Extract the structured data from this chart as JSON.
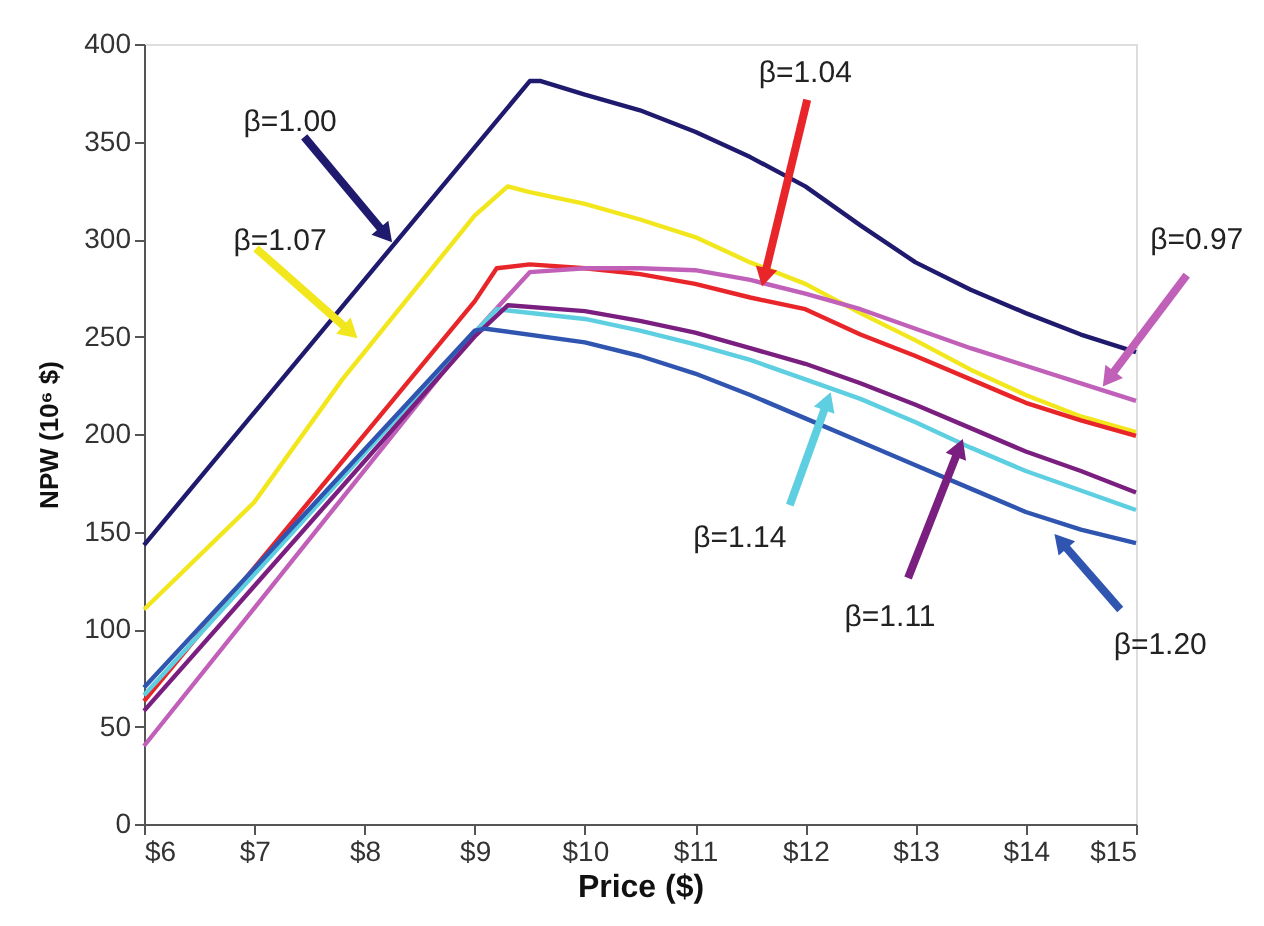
{
  "chart_data": {
    "type": "line",
    "xlabel": "Price ($)",
    "ylabel": "NPW (10⁶ $)",
    "xlim": [
      6,
      15
    ],
    "ylim": [
      0,
      400
    ],
    "xticks": [
      {
        "value": 6,
        "label": "$6"
      },
      {
        "value": 7,
        "label": "$7"
      },
      {
        "value": 8,
        "label": "$8"
      },
      {
        "value": 9,
        "label": "$9"
      },
      {
        "value": 10,
        "label": "$10"
      },
      {
        "value": 11,
        "label": "$11"
      },
      {
        "value": 12,
        "label": "$12"
      },
      {
        "value": 13,
        "label": "$13"
      },
      {
        "value": 14,
        "label": "$14"
      },
      {
        "value": 15,
        "label": "$15"
      }
    ],
    "yticks": [
      0,
      50,
      100,
      150,
      200,
      250,
      300,
      350,
      400
    ],
    "grid": false,
    "legend": false,
    "marker": "none",
    "line_style": "solid",
    "series": [
      {
        "color": "#1f1a6e",
        "x": [
          6,
          9,
          9.5,
          9.6,
          10,
          10.5,
          11,
          11.5,
          12,
          12.5,
          13,
          13.5,
          14,
          14.5,
          15
        ],
        "values": [
          143,
          347,
          381,
          381,
          374,
          366,
          355,
          342,
          327,
          307,
          288,
          274,
          262,
          251,
          242
        ]
      },
      {
        "color": "#f2e61c",
        "x": [
          6,
          7,
          7.8,
          9,
          9.3,
          9.5,
          10,
          10.5,
          11,
          11.5,
          12,
          12.5,
          13,
          13.5,
          14,
          14.5,
          15
        ],
        "values": [
          110,
          165,
          228,
          312,
          327,
          324,
          318,
          310,
          301,
          288,
          277,
          262,
          248,
          233,
          220,
          209,
          201
        ]
      },
      {
        "color": "#e8262a",
        "x": [
          6,
          9,
          9.2,
          9.5,
          10,
          10.5,
          11,
          11.5,
          12,
          12.5,
          13,
          13.5,
          14,
          14.5,
          15
        ],
        "values": [
          63,
          268,
          285,
          287,
          285,
          282,
          277,
          270,
          264,
          251,
          240,
          228,
          216,
          207,
          199
        ]
      },
      {
        "color": "#c060b8",
        "x": [
          6,
          9,
          9.5,
          10,
          10.5,
          11,
          11.5,
          12,
          12.5,
          13,
          13.5,
          14,
          14.5,
          15
        ],
        "values": [
          40,
          252,
          283,
          285,
          285,
          284,
          279,
          272,
          264,
          254,
          244,
          235,
          226,
          217
        ]
      },
      {
        "color": "#5ecfe0",
        "x": [
          6,
          9,
          9.2,
          10,
          10.5,
          11,
          11.5,
          12,
          12.5,
          13,
          13.5,
          14,
          14.5,
          15
        ],
        "values": [
          66,
          252,
          264,
          259,
          253,
          246,
          238,
          228,
          218,
          206,
          193,
          181,
          171,
          161
        ]
      },
      {
        "color": "#7a1f80",
        "x": [
          6,
          9,
          9.3,
          10,
          10.5,
          11,
          11.5,
          12,
          12.5,
          13,
          13.5,
          14,
          14.5,
          15
        ],
        "values": [
          58,
          250,
          266,
          263,
          258,
          252,
          244,
          236,
          226,
          215,
          203,
          191,
          181,
          170
        ]
      },
      {
        "color": "#2f55b0",
        "x": [
          6,
          9,
          9.1,
          10,
          10.5,
          11,
          11.5,
          12,
          12.5,
          13,
          13.5,
          14,
          14.5,
          15
        ],
        "values": [
          70,
          253,
          254,
          247,
          240,
          231,
          220,
          208,
          196,
          184,
          172,
          160,
          151,
          144
        ]
      }
    ],
    "annotations": [
      {
        "text": "β=1.00",
        "x": 8.27,
        "y": 297
      },
      {
        "text": "β=1.07",
        "x": 7.96,
        "y": 248
      },
      {
        "text": "β=1.04",
        "x": 11.6,
        "y": 274
      },
      {
        "text": "β=0.97",
        "x": 14.68,
        "y": 223
      },
      {
        "text": "β=1.14",
        "x": 12.24,
        "y": 223
      },
      {
        "text": "β=1.11",
        "x": 13.44,
        "y": 199
      },
      {
        "text": "β=1.20",
        "x": 14.24,
        "y": 150
      }
    ]
  }
}
